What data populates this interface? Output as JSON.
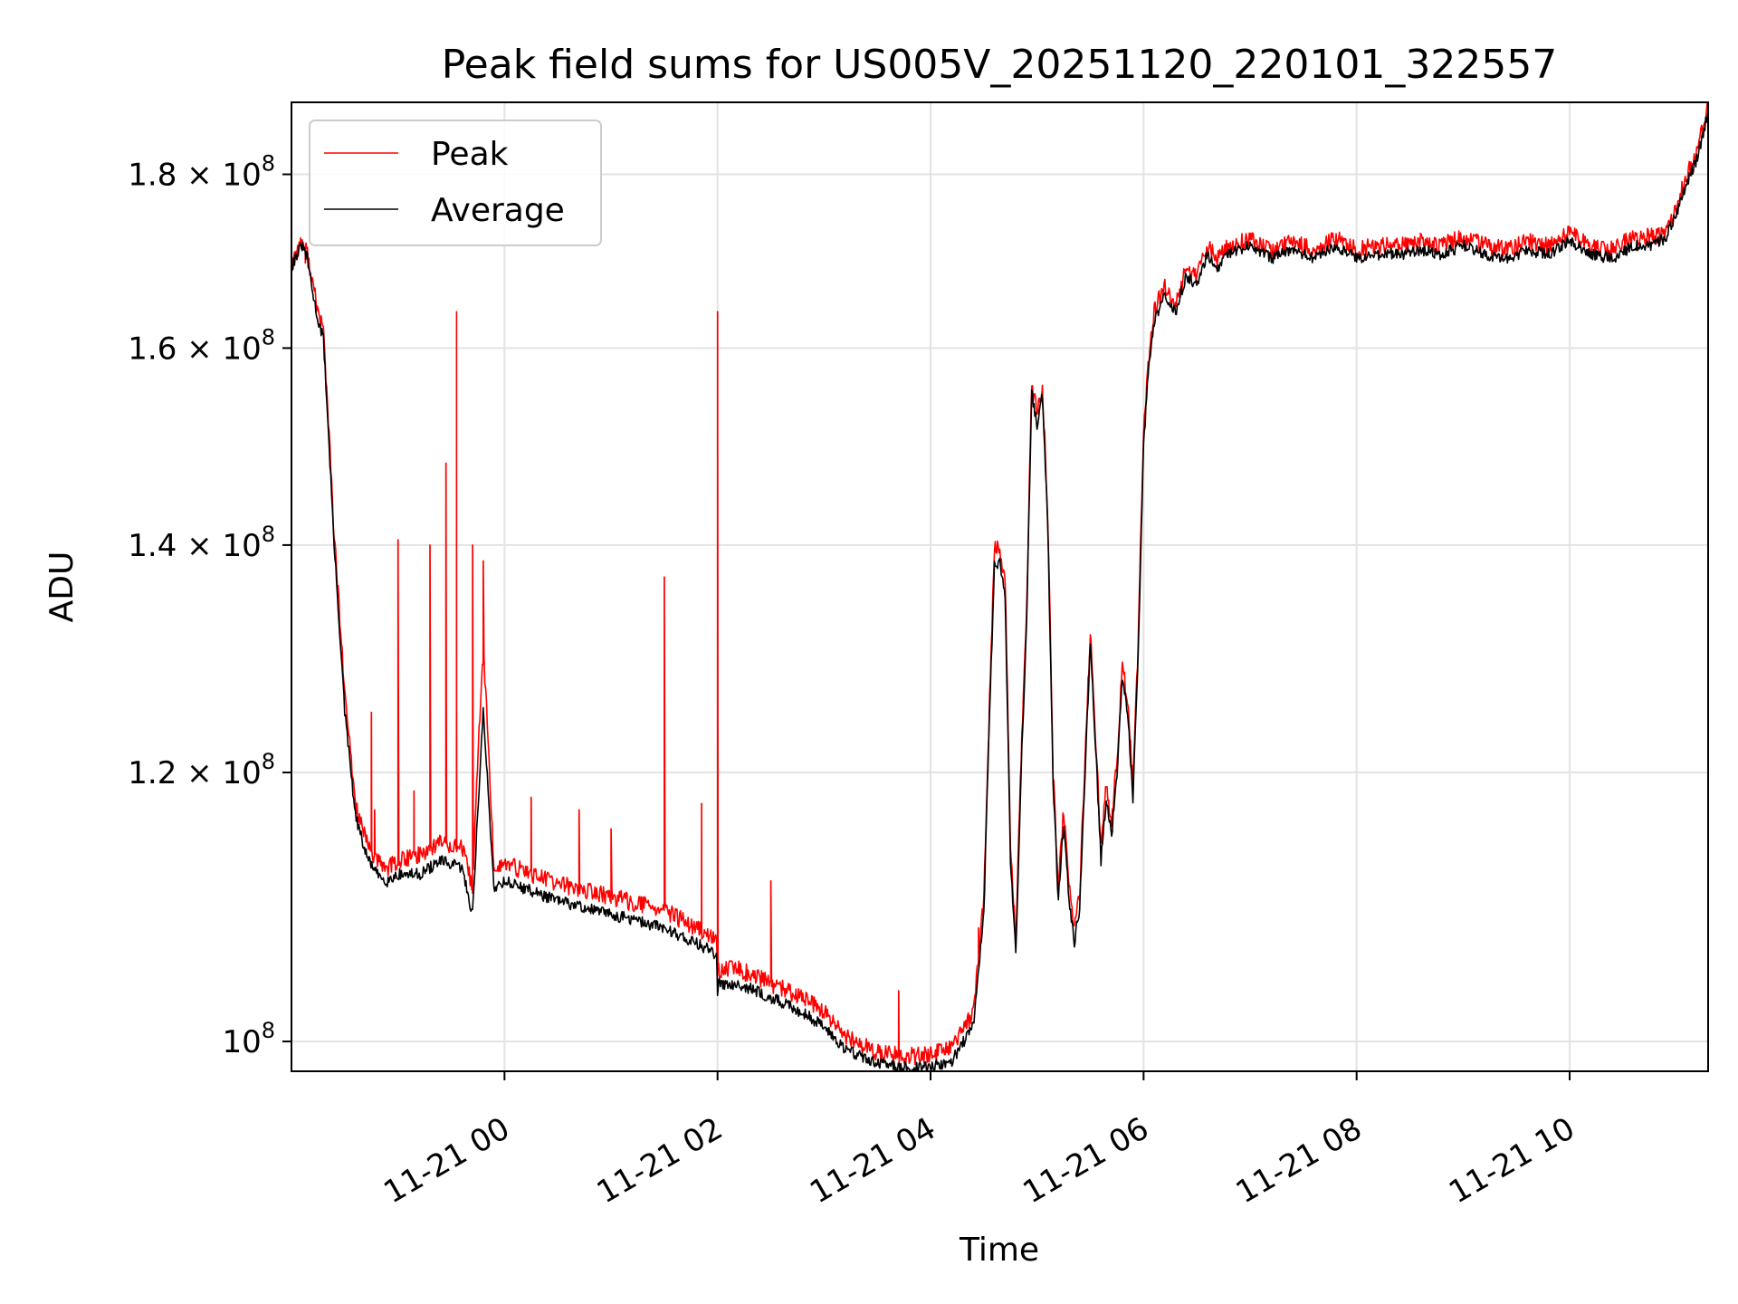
{
  "chart_data": {
    "type": "line",
    "title": "Peak field sums for US005V_20251120_220101_322557",
    "xlabel": "Time",
    "ylabel": "ADU",
    "yscale": "log",
    "ylim": [
      98000000,
      189000000
    ],
    "xlim": [
      -2.0,
      11.3
    ],
    "x_unit": "hours since 2025-11-21 00:00",
    "grid": true,
    "legend_position": "top-left",
    "x_ticks": [
      {
        "value": 0,
        "label": "11-21 00"
      },
      {
        "value": 2,
        "label": "11-21 02"
      },
      {
        "value": 4,
        "label": "11-21 04"
      },
      {
        "value": 6,
        "label": "11-21 06"
      },
      {
        "value": 8,
        "label": "11-21 08"
      },
      {
        "value": 10,
        "label": "11-21 10"
      }
    ],
    "y_ticks": [
      {
        "value": 100000000,
        "base": "10",
        "exp": "8",
        "mant": ""
      },
      {
        "value": 120000000,
        "base": "10",
        "exp": "8",
        "mant": "1.2 × "
      },
      {
        "value": 140000000,
        "base": "10",
        "exp": "8",
        "mant": "1.4 × "
      },
      {
        "value": 160000000,
        "base": "10",
        "exp": "8",
        "mant": "1.6 × "
      },
      {
        "value": 180000000,
        "base": "10",
        "exp": "8",
        "mant": "1.8 × "
      }
    ],
    "series": [
      {
        "name": "Average",
        "color": "#000000",
        "x": [
          -2.0,
          -1.95,
          -1.9,
          -1.85,
          -1.8,
          -1.75,
          -1.7,
          -1.6,
          -1.5,
          -1.4,
          -1.3,
          -1.2,
          -1.1,
          -1.0,
          -0.8,
          -0.6,
          -0.4,
          -0.3,
          -0.2,
          -0.1,
          0.0,
          0.5,
          1.0,
          1.5,
          1.9,
          1.99,
          2.0,
          2.01,
          2.2,
          2.5,
          2.8,
          3.0,
          3.2,
          3.5,
          3.8,
          4.0,
          4.2,
          4.4,
          4.5,
          4.6,
          4.65,
          4.7,
          4.75,
          4.8,
          4.85,
          4.9,
          4.95,
          5.0,
          5.05,
          5.1,
          5.15,
          5.2,
          5.25,
          5.3,
          5.35,
          5.4,
          5.45,
          5.5,
          5.55,
          5.6,
          5.65,
          5.7,
          5.75,
          5.8,
          5.85,
          5.9,
          5.95,
          6.0,
          6.05,
          6.1,
          6.2,
          6.3,
          6.4,
          6.5,
          6.6,
          6.7,
          6.8,
          6.9,
          7.0,
          7.2,
          7.4,
          7.6,
          7.8,
          8.0,
          8.2,
          8.4,
          8.6,
          8.8,
          9.0,
          9.2,
          9.4,
          9.6,
          9.8,
          10.0,
          10.2,
          10.4,
          10.6,
          10.8,
          10.9,
          11.0,
          11.1,
          11.2,
          11.3
        ],
        "y": [
          169000000,
          170500000,
          171500000,
          170000000,
          166000000,
          163000000,
          161000000,
          140000000,
          125000000,
          116500000,
          113500000,
          112000000,
          111500000,
          112000000,
          112000000,
          113000000,
          112500000,
          109000000,
          125000000,
          111000000,
          111500000,
          110000000,
          109000000,
          108000000,
          106500000,
          106000000,
          103000000,
          104000000,
          104000000,
          103000000,
          102000000,
          101000000,
          99500000,
          98500000,
          98200000,
          98300000,
          98700000,
          101000000,
          109000000,
          138000000,
          138500000,
          135000000,
          113000000,
          106000000,
          120000000,
          132000000,
          155000000,
          152000000,
          155000000,
          142000000,
          119000000,
          110000000,
          116000000,
          110000000,
          107000000,
          109500000,
          120000000,
          131000000,
          122000000,
          113000000,
          118000000,
          115000000,
          120000000,
          128000000,
          125000000,
          118000000,
          130000000,
          150000000,
          158000000,
          163000000,
          166000000,
          164000000,
          168000000,
          167000000,
          170500000,
          169000000,
          170500000,
          171000000,
          171500000,
          170000000,
          171000000,
          170000000,
          171500000,
          170000000,
          170500000,
          170500000,
          171000000,
          170500000,
          171500000,
          170500000,
          170000000,
          171000000,
          170500000,
          172000000,
          170500000,
          170000000,
          171500000,
          171500000,
          172500000,
          175000000,
          179000000,
          182000000,
          188000000
        ]
      },
      {
        "name": "Peak",
        "color": "#ff0000",
        "x": [
          -2.0,
          -1.95,
          -1.9,
          -1.85,
          -1.8,
          -1.75,
          -1.7,
          -1.6,
          -1.5,
          -1.4,
          -1.3,
          -1.2,
          -1.1,
          -1.0,
          -0.8,
          -0.6,
          -0.4,
          -0.3,
          -0.2,
          -0.1,
          0.0,
          0.5,
          1.0,
          1.5,
          1.9,
          1.99,
          2.0,
          2.01,
          2.2,
          2.5,
          2.8,
          3.0,
          3.2,
          3.5,
          3.8,
          4.0,
          4.2,
          4.4,
          4.5,
          4.6,
          4.65,
          4.7,
          4.75,
          4.8,
          4.85,
          4.9,
          4.95,
          5.0,
          5.05,
          5.1,
          5.15,
          5.2,
          5.25,
          5.3,
          5.35,
          5.4,
          5.45,
          5.5,
          5.55,
          5.6,
          5.65,
          5.7,
          5.75,
          5.8,
          5.85,
          5.9,
          5.95,
          6.0,
          6.05,
          6.1,
          6.2,
          6.3,
          6.4,
          6.5,
          6.6,
          6.7,
          6.8,
          6.9,
          7.0,
          7.2,
          7.4,
          7.6,
          7.8,
          8.0,
          8.2,
          8.4,
          8.6,
          8.8,
          9.0,
          9.2,
          9.4,
          9.6,
          9.8,
          10.0,
          10.2,
          10.4,
          10.6,
          10.8,
          10.9,
          11.0,
          11.1,
          11.2,
          11.3
        ],
        "y": [
          169500000,
          171000000,
          172000000,
          170500000,
          167000000,
          164000000,
          162000000,
          141000000,
          126500000,
          117500000,
          114500000,
          113000000,
          112500000,
          113000000,
          113500000,
          114500000,
          114000000,
          111000000,
          131000000,
          112500000,
          112800000,
          111300000,
          110300000,
          109300000,
          107500000,
          107000000,
          104500000,
          105000000,
          105000000,
          104000000,
          103000000,
          102000000,
          100300000,
          99300000,
          99000000,
          99100000,
          99500000,
          102000000,
          110000000,
          139500000,
          140000000,
          136500000,
          114000000,
          107000000,
          121000000,
          133000000,
          156000000,
          153000000,
          156000000,
          143000000,
          120000000,
          111000000,
          117000000,
          111000000,
          108000000,
          110500000,
          121000000,
          132000000,
          123000000,
          114000000,
          119000000,
          116000000,
          121000000,
          129000000,
          126000000,
          119000000,
          131000000,
          151000000,
          159000000,
          164000000,
          167000000,
          165000000,
          169000000,
          168000000,
          171500000,
          170000000,
          171500000,
          172000000,
          172500000,
          171000000,
          172000000,
          171000000,
          172500000,
          171000000,
          171500000,
          171500000,
          172000000,
          171500000,
          172500000,
          171500000,
          171000000,
          172000000,
          171500000,
          173000000,
          171500000,
          171000000,
          172500000,
          172500000,
          173500000,
          176000000,
          180000000,
          183000000,
          189000000
        ],
        "spikes": [
          {
            "x": -1.87,
            "y": 169500000
          },
          {
            "x": -1.25,
            "y": 125000000
          },
          {
            "x": -1.22,
            "y": 117000000
          },
          {
            "x": -1.0,
            "y": 140500000
          },
          {
            "x": -0.85,
            "y": 118500000
          },
          {
            "x": -0.7,
            "y": 115500000
          },
          {
            "x": -0.7,
            "y": 140000000
          },
          {
            "x": -0.55,
            "y": 148000000
          },
          {
            "x": -0.45,
            "y": 164000000
          },
          {
            "x": -0.45,
            "y": 125000000
          },
          {
            "x": -0.3,
            "y": 140000000
          },
          {
            "x": -0.2,
            "y": 138500000
          },
          {
            "x": 0.25,
            "y": 118000000
          },
          {
            "x": 0.7,
            "y": 117000000
          },
          {
            "x": 1.0,
            "y": 115500000
          },
          {
            "x": 1.5,
            "y": 137000000
          },
          {
            "x": 1.85,
            "y": 117500000
          },
          {
            "x": 2.0,
            "y": 164000000
          },
          {
            "x": 2.5,
            "y": 111500000
          },
          {
            "x": 3.7,
            "y": 103500000
          },
          {
            "x": 4.45,
            "y": 108000000
          }
        ]
      }
    ]
  }
}
